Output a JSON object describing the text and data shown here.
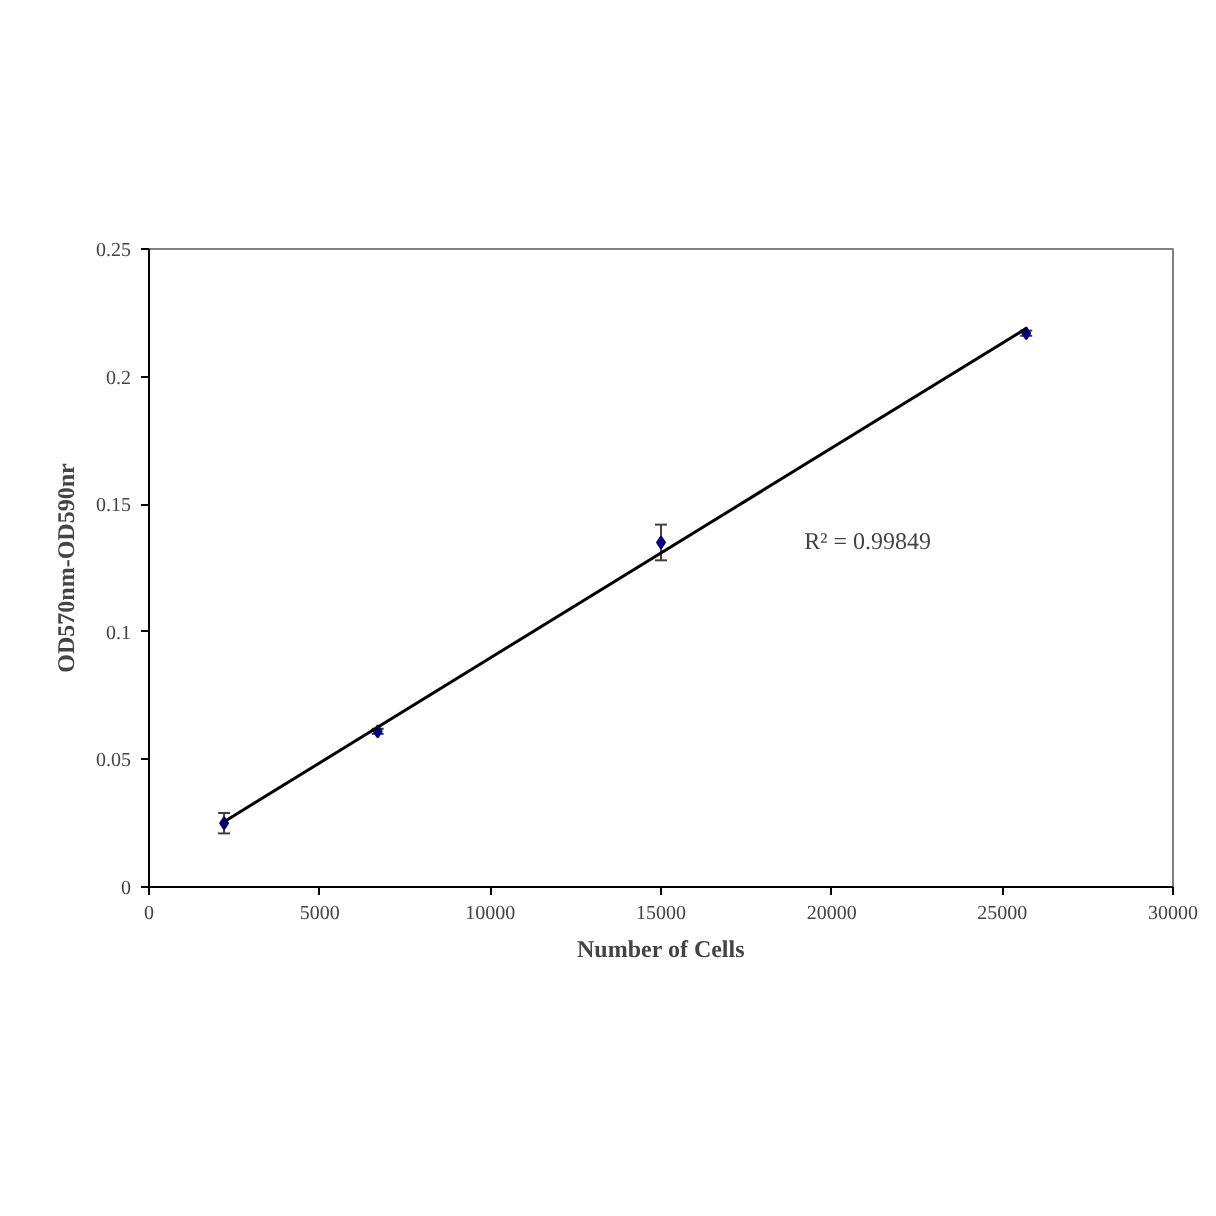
{
  "chart_data": {
    "type": "scatter",
    "xlabel": "Number of Cells",
    "ylabel": "OD570nm-OD590nr",
    "annotations": [
      "R² = 0.99849"
    ],
    "series": [
      {
        "color": "#000080",
        "x": [
          2200,
          6700,
          15000,
          25700
        ],
        "values": [
          0.025,
          0.061,
          0.135,
          0.217
        ],
        "errors": [
          0.004,
          0.001,
          0.007,
          0.001
        ],
        "marker": "diamond"
      },
      {
        "type": "line",
        "color": "#000000",
        "x": [
          2200,
          25700
        ],
        "values": [
          0.0256,
          0.2189
        ]
      }
    ],
    "xlim": [
      0,
      30000
    ],
    "ylim": [
      0,
      0.25
    ],
    "xticks": [
      0,
      5000,
      10000,
      15000,
      20000,
      25000,
      30000
    ],
    "yticks": [
      0,
      0.05,
      0.1,
      0.15,
      0.2,
      0.25
    ],
    "grid": false
  }
}
